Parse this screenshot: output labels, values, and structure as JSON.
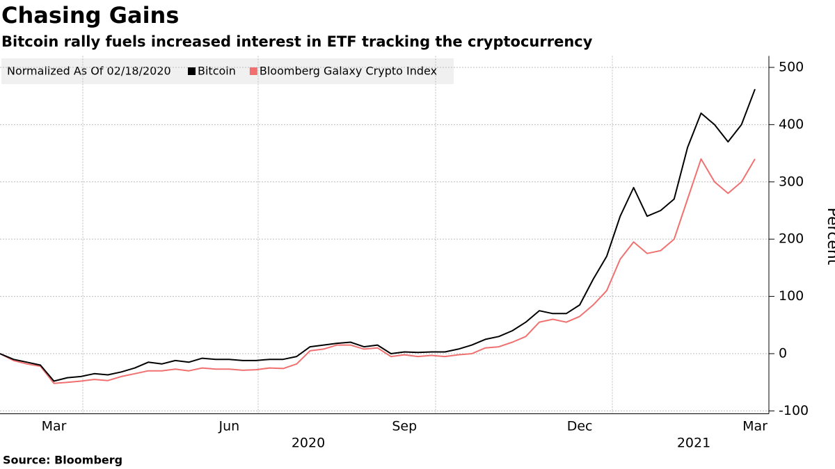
{
  "chart_data": {
    "type": "line",
    "title": "Chasing Gains",
    "subtitle": "Bitcoin rally fuels increased interest in ETF tracking the cryptocurrency",
    "legend_note": "Normalized As Of 02/18/2020",
    "y_label": "Percent",
    "source": "Source: Bloomberg",
    "year_labels": [
      "2020",
      "2021"
    ],
    "categories": [
      null,
      null,
      null,
      null,
      "Mar",
      null,
      null,
      null,
      null,
      null,
      null,
      null,
      null,
      null,
      null,
      null,
      null,
      "Jun",
      null,
      null,
      null,
      null,
      null,
      null,
      null,
      null,
      null,
      null,
      null,
      null,
      "Sep",
      null,
      null,
      null,
      null,
      null,
      null,
      null,
      null,
      null,
      null,
      null,
      null,
      "Dec",
      null,
      null,
      null,
      null,
      null,
      null,
      null,
      null,
      null,
      null,
      null,
      null,
      "Mar"
    ],
    "series": [
      {
        "name": "Bitcoin",
        "color": "#000000",
        "values": [
          0,
          -10,
          -15,
          -20,
          -48,
          -42,
          -40,
          -35,
          -37,
          -32,
          -25,
          -15,
          -18,
          -12,
          -15,
          -8,
          -10,
          -10,
          -12,
          -12,
          -10,
          -10,
          -5,
          12,
          15,
          18,
          20,
          12,
          15,
          0,
          3,
          2,
          3,
          3,
          8,
          15,
          25,
          30,
          40,
          55,
          75,
          70,
          70,
          85,
          130,
          170,
          240,
          290,
          240,
          250,
          270,
          360,
          420,
          400,
          370,
          400,
          462
        ]
      },
      {
        "name": "Bloomberg Galaxy Crypto Index",
        "color": "#f07070",
        "values": [
          0,
          -12,
          -18,
          -22,
          -52,
          -50,
          -48,
          -45,
          -47,
          -40,
          -35,
          -30,
          -30,
          -27,
          -30,
          -25,
          -27,
          -27,
          -29,
          -28,
          -25,
          -26,
          -18,
          5,
          8,
          15,
          15,
          8,
          10,
          -5,
          -2,
          -5,
          -3,
          -5,
          -2,
          0,
          10,
          12,
          20,
          30,
          55,
          60,
          55,
          65,
          85,
          110,
          165,
          195,
          175,
          180,
          200,
          270,
          340,
          300,
          280,
          300,
          340
        ]
      }
    ],
    "ylim": [
      -105,
      520
    ],
    "yticks": [
      -100,
      0,
      100,
      200,
      300,
      400,
      500
    ],
    "grid": true
  }
}
